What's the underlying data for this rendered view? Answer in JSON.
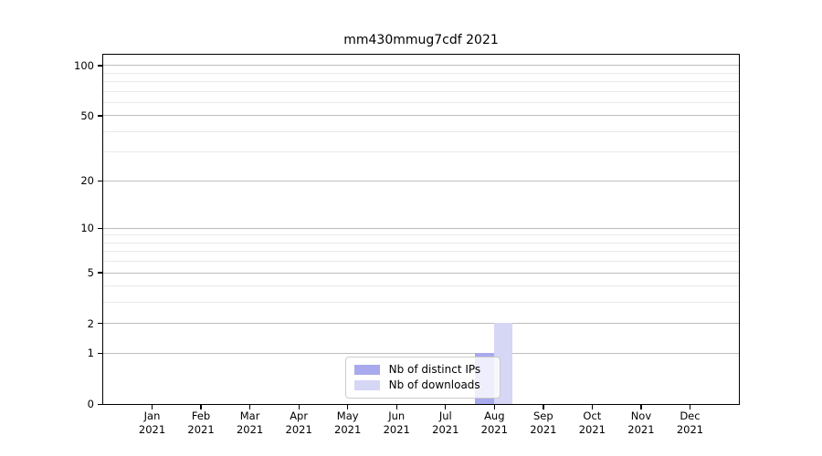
{
  "chart_data": {
    "type": "bar",
    "title": "mm430mmug7cdf 2021",
    "year_label": "2021",
    "categories": [
      "Jan",
      "Feb",
      "Mar",
      "Apr",
      "May",
      "Jun",
      "Jul",
      "Aug",
      "Sep",
      "Oct",
      "Nov",
      "Dec"
    ],
    "series": [
      {
        "name": "Nb of distinct IPs",
        "color": "#a9a9ed",
        "values": [
          0,
          0,
          0,
          0,
          0,
          0,
          0,
          1,
          0,
          0,
          0,
          0
        ]
      },
      {
        "name": "Nb of downloads",
        "color": "#d6d6f5",
        "values": [
          0,
          0,
          0,
          0,
          0,
          0,
          0,
          2,
          0,
          0,
          0,
          0
        ]
      }
    ],
    "y_axis": {
      "scale": "log1p",
      "ymin": 0,
      "ymax": 115,
      "major_ticks": [
        0,
        1,
        2,
        5,
        10,
        20,
        50,
        100
      ],
      "minor_ticks": [
        3,
        4,
        6,
        7,
        8,
        9,
        30,
        40,
        60,
        70,
        80,
        90
      ]
    },
    "x_axis": {
      "tick_labels_two_lines": true
    },
    "legend": {
      "position": "lower-center",
      "frame": true
    },
    "grid": "both",
    "colors": {
      "grid_major": "#bdbdbd",
      "grid_minor": "#e9e9e9",
      "spine": "#000000",
      "background": "#ffffff"
    }
  }
}
